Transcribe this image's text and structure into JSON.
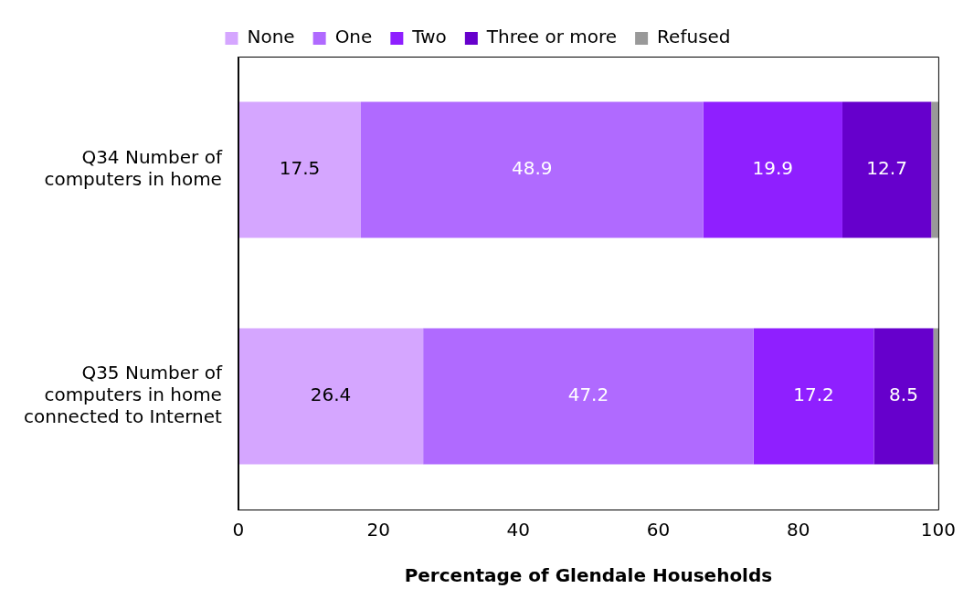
{
  "chart_data": {
    "type": "bar",
    "orientation": "horizontal",
    "stacked": true,
    "xlabel": "Percentage of Glendale Households",
    "categories": [
      "Q34 Number of computers in home",
      "Q35 Number of computers in home connected to Internet"
    ],
    "series": [
      {
        "name": "None",
        "color": "#d5a6ff",
        "values": [
          17.5,
          26.4
        ],
        "value_labels": [
          "17.5",
          "26.4"
        ]
      },
      {
        "name": "One",
        "color": "#b06aff",
        "values": [
          48.9,
          47.2
        ],
        "value_labels": [
          "48.9",
          "47.2"
        ]
      },
      {
        "name": "Two",
        "color": "#8f1fff",
        "values": [
          19.9,
          17.2
        ],
        "value_labels": [
          "19.9",
          "17.2"
        ]
      },
      {
        "name": "Three or more",
        "color": "#6600cc",
        "values": [
          12.7,
          8.5
        ],
        "value_labels": [
          "12.7",
          "8.5"
        ]
      },
      {
        "name": "Refused",
        "color": "#999999",
        "values": [
          1.0,
          0.7
        ],
        "value_labels": [
          null,
          null
        ]
      }
    ],
    "xlim": [
      0,
      100
    ],
    "xticks": [
      0,
      20,
      40,
      60,
      80,
      100
    ],
    "grid": false,
    "legend": "top"
  }
}
